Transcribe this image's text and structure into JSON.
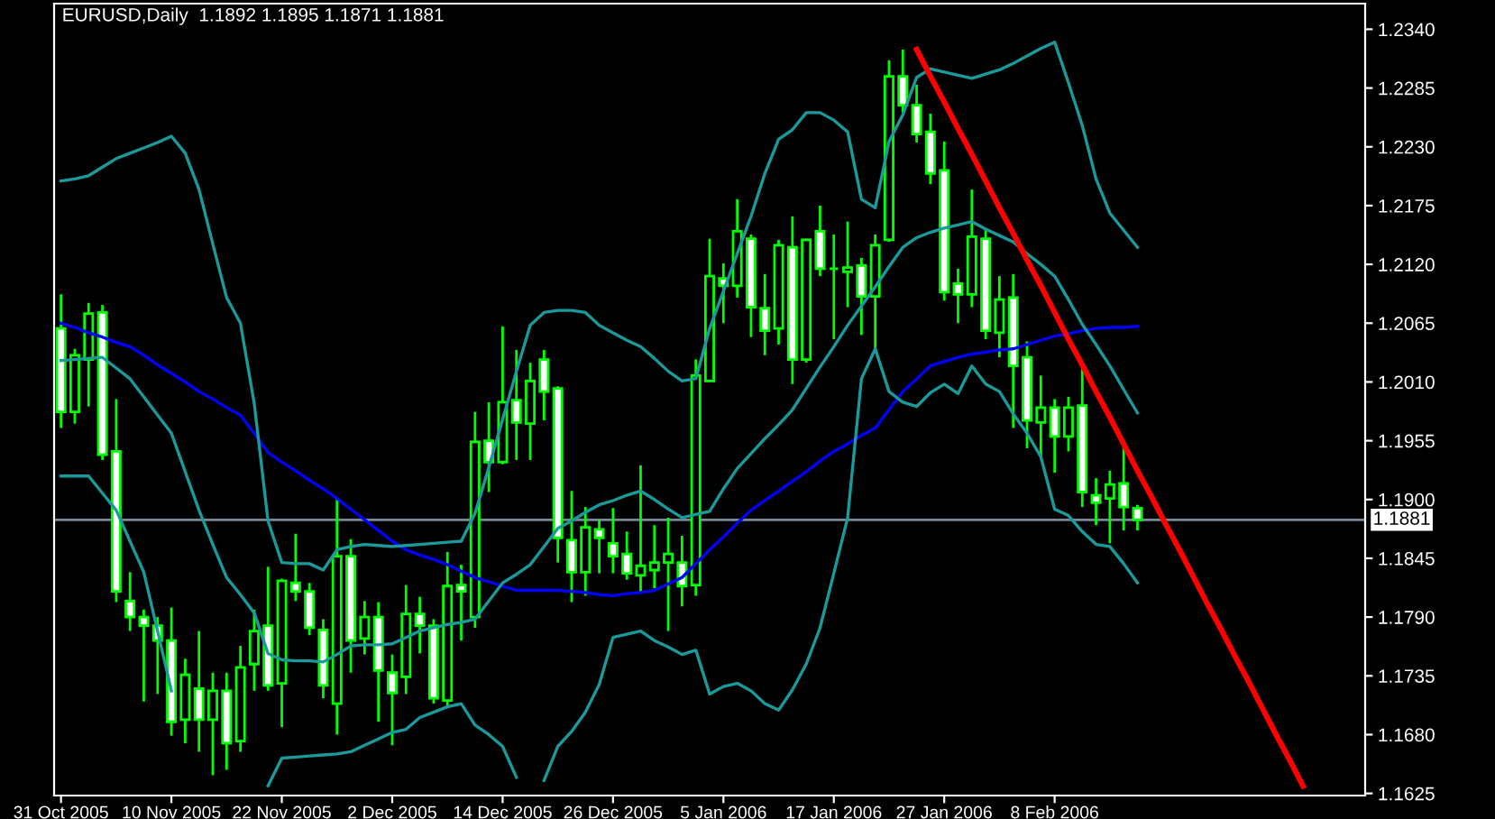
{
  "chart_data": {
    "type": "candlestick",
    "title": "EURUSD,Daily  1.1892 1.1895 1.1871 1.1881",
    "categories": [
      "31 Oct 2005",
      null,
      null,
      null,
      null,
      null,
      null,
      null,
      "10 Nov 2005",
      null,
      null,
      null,
      null,
      null,
      null,
      null,
      "22 Nov 2005",
      null,
      null,
      null,
      null,
      null,
      null,
      null,
      "2 Dec 2005",
      null,
      null,
      null,
      null,
      null,
      null,
      null,
      "14 Dec 2005",
      null,
      null,
      null,
      null,
      null,
      null,
      null,
      "26 Dec 2005",
      null,
      null,
      null,
      null,
      null,
      null,
      null,
      "5 Jan 2006",
      null,
      null,
      null,
      null,
      null,
      null,
      null,
      "17 Jan 2006",
      null,
      null,
      null,
      null,
      null,
      null,
      null,
      "27 Jan 2006",
      null,
      null,
      null,
      null,
      null,
      null,
      null,
      "8 Feb 2006",
      null,
      null,
      null,
      null,
      null,
      null,
      null,
      null,
      null,
      null,
      null,
      null,
      null,
      null,
      null,
      null,
      null,
      null,
      null,
      null,
      null,
      null
    ],
    "ohlc": [
      [
        1.206,
        1.2092,
        1.1967,
        1.1982
      ],
      [
        1.1982,
        1.2041,
        1.1971,
        1.2035
      ],
      [
        1.2031,
        1.2084,
        1.1987,
        1.2074
      ],
      [
        1.2075,
        1.2082,
        1.1937,
        1.1942
      ],
      [
        1.1945,
        1.1994,
        1.1804,
        1.1814
      ],
      [
        1.1805,
        1.1832,
        1.1777,
        1.179
      ],
      [
        1.179,
        1.1797,
        1.1711,
        1.1782
      ],
      [
        1.1782,
        1.179,
        1.1718,
        1.1768
      ],
      [
        1.1768,
        1.1799,
        1.1679,
        1.1692
      ],
      [
        1.1694,
        1.1751,
        1.1672,
        1.1736
      ],
      [
        1.1723,
        1.1777,
        1.1664,
        1.1694
      ],
      [
        1.1694,
        1.1738,
        1.1642,
        1.1721
      ],
      [
        1.1721,
        1.1738,
        1.1647,
        1.1672
      ],
      [
        1.1674,
        1.1763,
        1.1664,
        1.1743
      ],
      [
        1.1746,
        1.1797,
        1.1721,
        1.1777
      ],
      [
        1.1782,
        1.1837,
        1.1721,
        1.1726
      ],
      [
        1.1728,
        1.1826,
        1.1687,
        1.1824
      ],
      [
        1.1822,
        1.1868,
        1.1805,
        1.1814
      ],
      [
        1.1814,
        1.1822,
        1.1773,
        1.178
      ],
      [
        1.1778,
        1.1788,
        1.1714,
        1.1726
      ],
      [
        1.1709,
        1.1901,
        1.168,
        1.1847
      ],
      [
        1.1847,
        1.1863,
        1.1738,
        1.1768
      ],
      [
        1.177,
        1.1805,
        1.1755,
        1.179
      ],
      [
        1.179,
        1.1804,
        1.1692,
        1.174
      ],
      [
        1.1738,
        1.1755,
        1.167,
        1.1719
      ],
      [
        1.1734,
        1.182,
        1.1718,
        1.1793
      ],
      [
        1.1793,
        1.1809,
        1.1756,
        1.1782
      ],
      [
        1.1782,
        1.1788,
        1.1709,
        1.1714
      ],
      [
        1.1712,
        1.1851,
        1.1706,
        1.1819
      ],
      [
        1.182,
        1.1839,
        1.1768,
        1.1814
      ],
      [
        1.179,
        1.1982,
        1.178,
        1.1954
      ],
      [
        1.1955,
        1.1991,
        1.1907,
        1.1935
      ],
      [
        1.1935,
        1.2062,
        1.1933,
        1.1991
      ],
      [
        1.1993,
        1.204,
        1.1937,
        1.1972
      ],
      [
        1.1971,
        1.2028,
        1.1937,
        1.2011
      ],
      [
        1.2031,
        1.204,
        1.1974,
        1.2001
      ],
      [
        1.2004,
        1.2006,
        1.1841,
        1.1864
      ],
      [
        1.1862,
        1.1908,
        1.1804,
        1.1832
      ],
      [
        1.1832,
        1.1893,
        1.181,
        1.1874
      ],
      [
        1.1872,
        1.1881,
        1.1831,
        1.1864
      ],
      [
        1.1859,
        1.1892,
        1.1831,
        1.1847
      ],
      [
        1.1849,
        1.187,
        1.1825,
        1.1831
      ],
      [
        1.1829,
        1.1932,
        1.1814,
        1.1838
      ],
      [
        1.1834,
        1.1876,
        1.1817,
        1.1841
      ],
      [
        1.1841,
        1.1883,
        1.1777,
        1.1849
      ],
      [
        1.1841,
        1.1866,
        1.18,
        1.1819
      ],
      [
        1.182,
        1.2031,
        1.181,
        1.2016
      ],
      [
        1.2011,
        1.2144,
        1.201,
        1.2109
      ],
      [
        1.2107,
        1.2121,
        1.2065,
        1.21
      ],
      [
        1.21,
        1.2181,
        1.2089,
        1.2151
      ],
      [
        1.2144,
        1.2148,
        1.2052,
        1.208
      ],
      [
        1.2079,
        1.2111,
        1.2035,
        1.2058
      ],
      [
        1.206,
        1.2143,
        1.2045,
        1.2138
      ],
      [
        1.2136,
        1.2165,
        1.2008,
        1.2031
      ],
      [
        1.2031,
        1.2144,
        1.2028,
        1.2143
      ],
      [
        1.2151,
        1.2175,
        1.2109,
        1.2116
      ],
      [
        1.2116,
        1.2148,
        1.205,
        1.2116
      ],
      [
        1.2113,
        1.216,
        1.208,
        1.2117
      ],
      [
        1.2119,
        1.2126,
        1.2054,
        1.209
      ],
      [
        1.209,
        1.2148,
        1.204,
        1.2138
      ],
      [
        1.2143,
        1.2311,
        1.2141,
        1.2296
      ],
      [
        1.2296,
        1.2321,
        1.2262,
        1.2269
      ],
      [
        1.2269,
        1.2288,
        1.2234,
        1.2242
      ],
      [
        1.2244,
        1.2261,
        1.2195,
        1.2205
      ],
      [
        1.2208,
        1.2235,
        1.2086,
        1.2094
      ],
      [
        1.2102,
        1.2116,
        1.2065,
        1.2092
      ],
      [
        1.2092,
        1.219,
        1.208,
        1.2146
      ],
      [
        1.2144,
        1.2153,
        1.205,
        1.2058
      ],
      [
        1.2056,
        1.2109,
        1.2033,
        1.2087
      ],
      [
        1.2089,
        1.2111,
        1.1967,
        1.2025
      ],
      [
        1.2033,
        1.2048,
        1.1948,
        1.1974
      ],
      [
        1.1972,
        1.2016,
        1.194,
        1.1986
      ],
      [
        1.1986,
        1.1994,
        1.1925,
        1.1959
      ],
      [
        1.1959,
        1.1996,
        1.1945,
        1.1986
      ],
      [
        1.1988,
        1.2025,
        1.1893,
        1.1907
      ],
      [
        1.1904,
        1.192,
        1.1876,
        1.1897
      ],
      [
        1.1901,
        1.1927,
        1.1859,
        1.1914
      ],
      [
        1.1915,
        1.195,
        1.1871,
        1.1893
      ],
      [
        1.1892,
        1.1895,
        1.1871,
        1.1881
      ],
      null,
      null,
      null,
      null,
      null,
      null,
      null,
      null,
      null,
      null,
      null,
      null,
      null,
      null,
      null,
      null
    ],
    "colors": [
      "#ffffff",
      "#000000",
      "#000000",
      "#ffffff",
      "#ffffff",
      "#ffffff",
      "#ffffff",
      "#ffffff",
      "#ffffff",
      "#000000",
      "#ffffff",
      "#000000",
      "#ffffff",
      "#000000",
      "#000000",
      "#ffffff",
      "#000000",
      "#ffffff",
      "#ffffff",
      "#ffffff",
      "#000000",
      "#ffffff",
      "#000000",
      "#ffffff",
      "#ffffff",
      "#000000",
      "#ffffff",
      "#ffffff",
      "#000000",
      "#ffffff",
      "#000000",
      "#ffffff",
      "#000000",
      "#ffffff",
      "#000000",
      "#ffffff",
      "#ffffff",
      "#ffffff",
      "#000000",
      "#ffffff",
      "#ffffff",
      "#ffffff",
      "#000000",
      "#000000",
      "#000000",
      "#ffffff",
      "#000000",
      "#000000",
      "#ffffff",
      "#000000",
      "#ffffff",
      "#ffffff",
      "#000000",
      "#ffffff",
      "#000000",
      "#ffffff",
      "#00ff00",
      "#000000",
      "#ffffff",
      "#000000",
      "#000000",
      "#ffffff",
      "#ffffff",
      "#ffffff",
      "#ffffff",
      "#ffffff",
      "#000000",
      "#ffffff",
      "#000000",
      "#ffffff",
      "#ffffff",
      "#000000",
      "#ffffff",
      "#000000",
      "#ffffff",
      "#ffffff",
      "#000000",
      "#ffffff",
      "#ffffff",
      null,
      null,
      null,
      null,
      null,
      null,
      null,
      null,
      null,
      null,
      null,
      null,
      null,
      null,
      null,
      null
    ],
    "color": "#00ff00",
    "series": [
      {
        "type": "line",
        "color": "#0000ff",
        "values": [
          1.2065,
          1.2061,
          1.2056,
          1.2052,
          1.2047,
          1.2043,
          1.2035,
          1.2026,
          1.2018,
          1.201,
          1.2001,
          1.1994,
          1.1986,
          1.1979,
          1.1962,
          1.1944,
          1.1935,
          1.1927,
          1.1918,
          1.191,
          1.1901,
          1.1891,
          1.1881,
          1.1871,
          1.1861,
          1.1853,
          1.1848,
          1.1844,
          1.1839,
          1.1833,
          1.1827,
          1.1823,
          1.1819,
          1.1815,
          1.1815,
          1.1815,
          1.1815,
          1.1814,
          1.1813,
          1.1811,
          1.181,
          1.1812,
          1.1813,
          1.1815,
          1.1821,
          1.1827,
          1.184,
          1.1853,
          1.1865,
          1.1878,
          1.189,
          1.1899,
          1.1908,
          1.1917,
          1.1926,
          1.1936,
          1.1945,
          1.1952,
          1.196,
          1.1967,
          1.1984,
          1.2001,
          1.2013,
          1.2025,
          1.2029,
          1.2033,
          1.2036,
          1.2038,
          1.204,
          1.2041,
          1.2045,
          1.2049,
          1.2053,
          1.2055,
          1.2058,
          1.206,
          1.2061,
          1.2061,
          1.2062,
          null,
          null,
          null,
          null,
          null,
          null,
          null,
          null,
          null,
          null,
          null,
          null,
          null,
          null,
          null,
          null
        ]
      },
      {
        "type": "line",
        "color": "#1a9a9a",
        "values": [
          1.2198,
          1.22,
          1.2203,
          1.2211,
          1.2219,
          1.2224,
          1.2229,
          1.2234,
          1.224,
          1.2224,
          1.219,
          1.2139,
          1.2089,
          1.2065,
          1.199,
          1.188,
          1.1841,
          1.184,
          1.184,
          1.1834,
          1.1853,
          1.1856,
          1.1858,
          1.1857,
          1.1856,
          1.1857,
          1.1858,
          1.1859,
          1.186,
          1.1861,
          1.1887,
          1.193,
          1.1975,
          1.202,
          1.2063,
          1.2075,
          1.2077,
          1.2077,
          1.2075,
          1.2063,
          1.2056,
          1.2049,
          1.2043,
          1.2032,
          1.202,
          1.2011,
          1.2013,
          1.206,
          1.2095,
          1.213,
          1.2165,
          1.2205,
          1.2237,
          1.2246,
          1.2262,
          1.2262,
          1.2255,
          1.2244,
          1.2181,
          1.2173,
          1.2235,
          1.226,
          1.2295,
          1.2303,
          1.23,
          1.2297,
          1.2294,
          1.2298,
          1.2302,
          1.2308,
          1.2315,
          1.2322,
          1.2328,
          1.229,
          1.225,
          1.22,
          1.2168,
          1.2152,
          1.2136,
          null,
          null,
          null,
          null,
          null,
          null,
          null,
          null,
          null,
          null,
          null,
          null,
          null,
          null,
          null,
          null
        ]
      },
      {
        "type": "line",
        "color": "#1a9a9a",
        "values": [
          1.203,
          1.2031,
          1.2032,
          1.2033,
          1.2023,
          1.2013,
          1.1996,
          1.1979,
          1.1962,
          1.1926,
          1.189,
          1.1858,
          1.1827,
          1.1811,
          1.1794,
          1.1756,
          1.175,
          1.1749,
          1.1749,
          1.1748,
          1.1755,
          1.1763,
          1.1764,
          1.1764,
          1.1765,
          1.1771,
          1.1777,
          1.178,
          1.1783,
          1.1785,
          1.1788,
          1.1805,
          1.1822,
          1.183,
          1.1839,
          1.1856,
          1.1873,
          1.188,
          1.1888,
          1.1895,
          1.1899,
          1.1904,
          1.1908,
          1.19,
          1.1891,
          1.1883,
          1.1886,
          1.1889,
          1.191,
          1.1929,
          1.1943,
          1.1957,
          1.197,
          1.1984,
          1.2004,
          1.2024,
          1.2043,
          1.2063,
          1.2081,
          1.2099,
          1.2118,
          1.2136,
          1.2145,
          1.215,
          1.2154,
          1.2157,
          1.216,
          1.2153,
          1.2147,
          1.2141,
          1.213,
          1.212,
          1.2109,
          1.2087,
          1.2064,
          1.2045,
          1.2025,
          1.2003,
          1.1981,
          null,
          null,
          null,
          null,
          null,
          null,
          null,
          null,
          null,
          null,
          null,
          null,
          null,
          null,
          null,
          null
        ]
      },
      {
        "type": "line",
        "color": "#1a9a9a",
        "values": [
          1.1922,
          1.1922,
          1.1922,
          1.1906,
          1.189,
          1.1861,
          1.1832,
          1.1777,
          1.1721,
          null,
          null,
          null,
          null,
          null,
          null,
          1.1632,
          1.1658,
          1.1659,
          1.166,
          1.1661,
          1.1662,
          1.1664,
          1.167,
          1.1676,
          1.1682,
          1.1685,
          1.1696,
          1.1701,
          1.1706,
          1.1709,
          1.1689,
          1.168,
          1.1669,
          1.164,
          null,
          1.1637,
          1.1669,
          1.1683,
          1.1701,
          1.1727,
          1.1771,
          1.1774,
          1.1777,
          1.1768,
          1.1762,
          1.1755,
          1.1759,
          1.1718,
          1.1725,
          1.1728,
          1.1721,
          1.1709,
          1.1703,
          1.1722,
          1.1746,
          1.178,
          1.1831,
          1.1883,
          1.2013,
          1.2041,
          1.2001,
          1.1991,
          1.1987,
          1.2,
          1.2008,
          1.1999,
          1.2025,
          1.2008,
          1.2001,
          1.198,
          1.1962,
          1.194,
          1.1891,
          1.1885,
          1.187,
          1.1858,
          1.1856,
          1.184,
          1.1822,
          null,
          null,
          null,
          null,
          null,
          null,
          null,
          null,
          null,
          null,
          null,
          null,
          null,
          null,
          null,
          null
        ]
      },
      {
        "type": "line",
        "color": "#ff0000",
        "values": [
          null,
          null,
          null,
          null,
          null,
          null,
          null,
          null,
          null,
          null,
          null,
          null,
          null,
          null,
          null,
          null,
          null,
          null,
          null,
          null,
          null,
          null,
          null,
          null,
          null,
          null,
          null,
          null,
          null,
          null,
          null,
          null,
          null,
          null,
          null,
          null,
          null,
          null,
          null,
          null,
          null,
          null,
          null,
          null,
          null,
          null,
          null,
          null,
          null,
          null,
          null,
          null,
          null,
          null,
          null,
          null,
          null,
          null,
          null,
          null,
          null,
          null,
          1.2321,
          1.2296,
          1.2272,
          1.2247,
          1.2223,
          1.2198,
          1.2173,
          1.2149,
          1.2124,
          1.21,
          1.2075,
          1.205,
          1.2026,
          1.2001,
          1.1977,
          1.1952,
          1.1927,
          1.1903,
          1.1878,
          1.1854,
          1.1829,
          1.1804,
          1.178,
          1.1755,
          1.1731,
          1.1706,
          1.1681,
          1.1657,
          1.1632,
          null,
          null,
          null,
          null
        ]
      }
    ],
    "ylim": [
      1.1623,
      1.2364
    ],
    "yticks": [
      {
        "value": 1.234,
        "label": "1.2340"
      },
      {
        "value": 1.2285,
        "label": "1.2285"
      },
      {
        "value": 1.223,
        "label": "1.2230"
      },
      {
        "value": 1.2175,
        "label": "1.2175"
      },
      {
        "value": 1.212,
        "label": "1.2120"
      },
      {
        "value": 1.2065,
        "label": "1.2065"
      },
      {
        "value": 1.201,
        "label": "1.2010"
      },
      {
        "value": 1.1955,
        "label": "1.1955"
      },
      {
        "value": 1.19,
        "label": "1.1900"
      },
      {
        "value": 1.1845,
        "label": "1.1845"
      },
      {
        "value": 1.179,
        "label": "1.1790"
      },
      {
        "value": 1.1735,
        "label": "1.1735"
      },
      {
        "value": 1.168,
        "label": "1.1680"
      },
      {
        "value": 1.1625,
        "label": "1.1625"
      }
    ],
    "ref_lines": [
      {
        "axis": "y",
        "value": 1.1881,
        "label": "1.1881",
        "color": "#778899"
      }
    ]
  }
}
